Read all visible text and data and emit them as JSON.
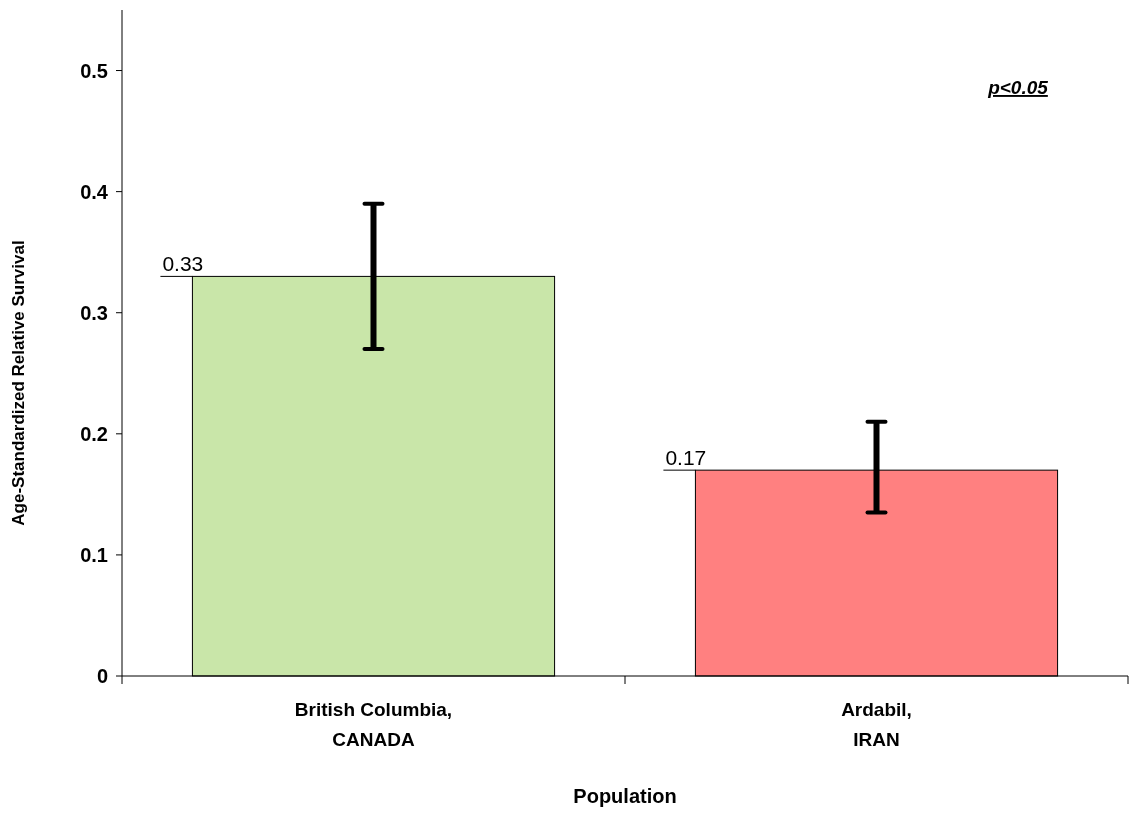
{
  "chart_data": {
    "type": "bar",
    "xlabel": "Population",
    "ylabel": "Age-Standardized Relative Survival",
    "categories": [
      "British Columbia,\nCANADA",
      "Ardabil,\nIRAN"
    ],
    "values": [
      0.33,
      0.17
    ],
    "colors": [
      "#c9e6a9",
      "#ff8080"
    ],
    "errors": [
      [
        0.27,
        0.39
      ],
      [
        0.135,
        0.21
      ]
    ],
    "data_labels": true,
    "ylim": [
      0,
      0.55
    ],
    "yticks": [
      0,
      0.1,
      0.2,
      0.3,
      0.4,
      0.5
    ],
    "grid": false,
    "annotations": [
      "p<0.05"
    ]
  }
}
